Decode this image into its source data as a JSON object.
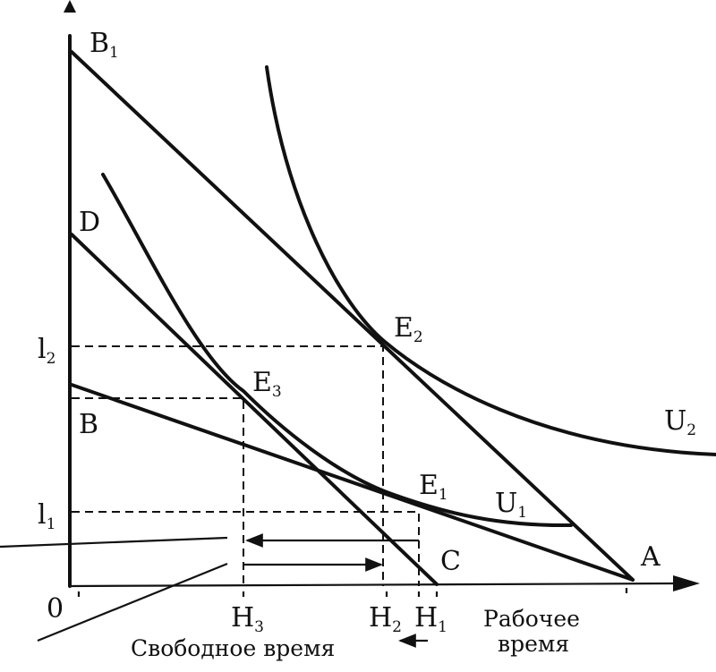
{
  "labels": {
    "origin": "0",
    "B1": {
      "main": "B",
      "sub": "1"
    },
    "D": "D",
    "B": "B",
    "l2": {
      "main": "l",
      "sub": "2"
    },
    "l1": {
      "main": "l",
      "sub": "1"
    },
    "E2": {
      "main": "E",
      "sub": "2"
    },
    "E3": {
      "main": "E",
      "sub": "3"
    },
    "E1": {
      "main": "E",
      "sub": "1"
    },
    "U2": {
      "main": "U",
      "sub": "2"
    },
    "U1": {
      "main": "U",
      "sub": "1"
    },
    "A": "A",
    "C": "C",
    "H3": {
      "main": "H",
      "sub": "3"
    },
    "H2": {
      "main": "H",
      "sub": "2"
    },
    "H1": {
      "main": "H",
      "sub": "1"
    }
  },
  "captions": {
    "working_time_line1": "Рабочее",
    "working_time_line2": "время",
    "free_time": "Свободное время"
  },
  "colors": {
    "ink": "#111111",
    "background": "#ffffff"
  }
}
